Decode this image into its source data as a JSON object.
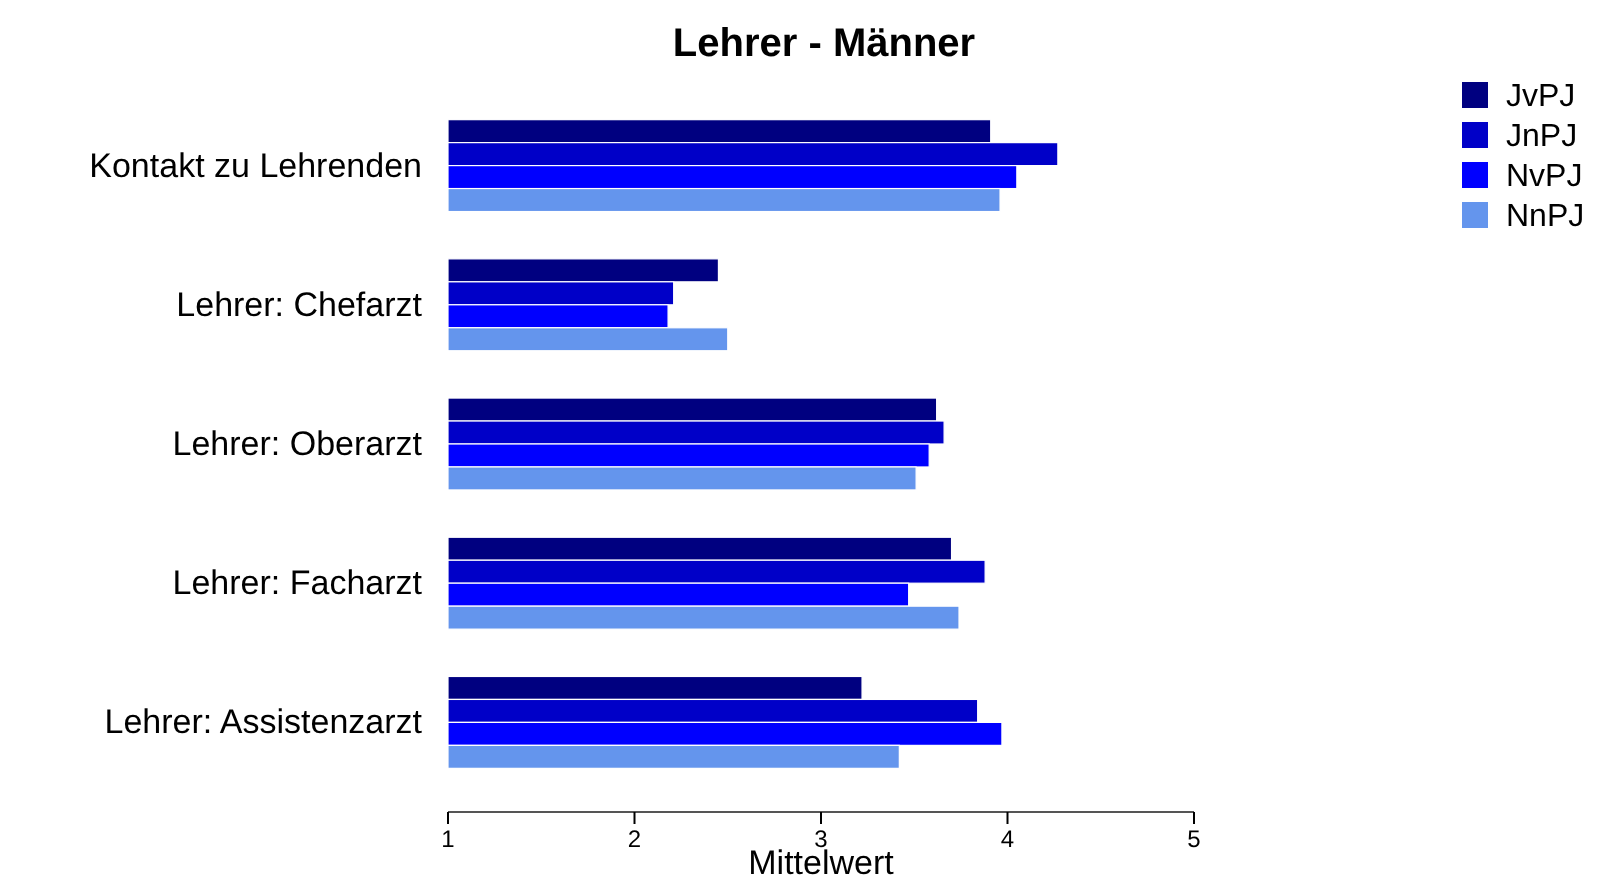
{
  "chart_data": {
    "type": "bar",
    "orientation": "horizontal",
    "title": "Lehrer - Männer",
    "xlabel": "Mittelwert",
    "categories": [
      "Kontakt zu Lehrenden",
      "Lehrer: Chefarzt",
      "Lehrer: Oberarzt",
      "Lehrer: Facharzt",
      "Lehrer: Assistenzarzt"
    ],
    "series": [
      {
        "name": "JvPJ",
        "color": "#000080",
        "values": [
          3.91,
          2.45,
          3.62,
          3.7,
          3.22
        ]
      },
      {
        "name": "JnPJ",
        "color": "#0000c8",
        "values": [
          4.27,
          2.21,
          3.66,
          3.88,
          3.84
        ]
      },
      {
        "name": "NvPJ",
        "color": "#0000ff",
        "values": [
          4.05,
          2.18,
          3.58,
          3.47,
          3.97
        ]
      },
      {
        "name": "NnPJ",
        "color": "#6495ed",
        "values": [
          3.96,
          2.5,
          3.51,
          3.74,
          3.42
        ]
      }
    ],
    "xlim": [
      1,
      5
    ],
    "xticks": [
      1,
      2,
      3,
      4,
      5
    ],
    "legend": "right",
    "grid": false
  }
}
